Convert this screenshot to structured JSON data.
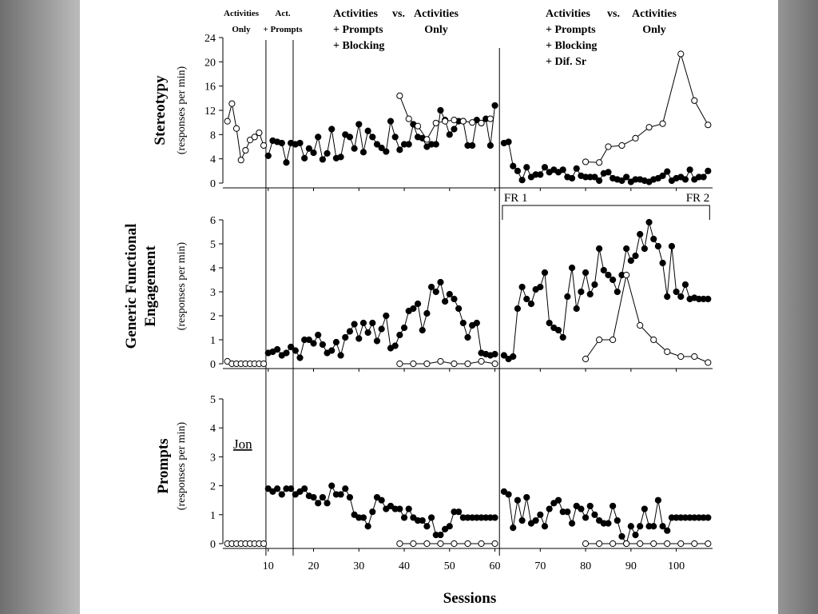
{
  "colors": {
    "background": "#bdbdbd",
    "slide": "#ffffff",
    "ink": "#000000"
  },
  "phase_labels": [
    {
      "lines": [
        "Activities",
        "Only"
      ],
      "small": true
    },
    {
      "lines": [
        "Act.",
        "+ Prompts"
      ],
      "small": true
    },
    {
      "lines": [
        "Activities",
        "+ Prompts",
        "+ Blocking"
      ]
    },
    {
      "lines": [
        "vs."
      ]
    },
    {
      "lines": [
        "Activities",
        "Only"
      ]
    },
    {
      "lines": [
        "Activities",
        "+ Prompts",
        "+ Blocking",
        "+ Dif. Sr"
      ]
    },
    {
      "lines": [
        "vs."
      ]
    },
    {
      "lines": [
        "Activities",
        "Only"
      ]
    }
  ],
  "participant": "Jon",
  "fr_labels": [
    "FR 1",
    "FR 2"
  ],
  "x_axis": {
    "label": "Sessions",
    "ticks": [
      10,
      20,
      30,
      40,
      50,
      60,
      70,
      80,
      90,
      100
    ],
    "range": [
      0,
      108
    ]
  },
  "phase_change_sessions": [
    9.5,
    15.5,
    61
  ],
  "chart_data": [
    {
      "type": "line",
      "title": "Stereotypy",
      "ylabel": "Stereotypy",
      "ysublabel": "(responses per min)",
      "ylim": [
        0,
        24
      ],
      "yticks": [
        0,
        4,
        8,
        12,
        16,
        20,
        24
      ],
      "series": [
        {
          "name": "filled",
          "marker": "filled",
          "segments": [
            {
              "x": [
                10,
                11,
                12,
                13,
                14,
                15,
                16,
                17,
                18,
                19,
                20,
                21,
                22,
                23,
                24,
                25,
                26,
                27,
                28,
                29,
                30,
                31,
                32,
                33,
                34,
                35,
                36,
                37,
                38,
                39,
                40,
                41,
                42,
                43,
                44,
                45,
                46,
                47,
                48,
                49,
                50,
                51,
                52,
                53,
                54,
                55,
                56,
                57,
                58,
                59,
                60
              ],
              "y": [
                4.5,
                7.0,
                6.8,
                6.6,
                3.4,
                6.6,
                6.4,
                6.6,
                4.1,
                5.7,
                5.0,
                7.6,
                3.9,
                4.9,
                8.9,
                4.1,
                4.3,
                8.0,
                7.6,
                5.7,
                9.7,
                5.1,
                8.6,
                7.6,
                6.4,
                5.8,
                5.2,
                10.2,
                7.6,
                5.5,
                6.4,
                6.4,
                9.7,
                7.6,
                7.4,
                6.0,
                6.4,
                6.4,
                12.0,
                10.4,
                8.0,
                8.9,
                10.2,
                10.2,
                6.2,
                6.2,
                10.4,
                9.9,
                10.6,
                6.2,
                12.8
              ]
            },
            {
              "x": [
                62,
                63,
                64,
                65,
                66,
                67,
                68,
                69,
                70,
                71,
                72,
                73,
                74,
                75,
                76,
                77,
                78,
                79,
                80,
                81,
                82,
                83,
                84,
                85,
                86,
                87,
                88,
                89,
                90,
                91,
                92,
                93,
                94,
                95,
                96,
                97,
                98,
                99,
                100,
                101,
                102,
                103,
                104,
                105,
                106,
                107
              ],
              "y": [
                6.6,
                6.8,
                2.8,
                2.0,
                0.5,
                2.6,
                1.0,
                1.4,
                1.4,
                2.6,
                1.8,
                2.2,
                1.8,
                2.2,
                1.0,
                0.8,
                2.4,
                1.2,
                1.0,
                1.0,
                1.0,
                0.4,
                1.6,
                1.8,
                0.8,
                0.6,
                0.4,
                1.0,
                0.2,
                0.6,
                0.6,
                0.4,
                0.2,
                0.6,
                0.8,
                1.2,
                1.9,
                0.4,
                0.8,
                1.0,
                0.6,
                2.2,
                0.6,
                1.0,
                1.0,
                2.0
              ]
            }
          ]
        },
        {
          "name": "open",
          "marker": "open",
          "segments": [
            {
              "x": [
                1,
                2,
                3,
                4,
                5,
                6,
                7,
                8,
                9
              ],
              "y": [
                10.2,
                13.1,
                9.0,
                3.8,
                5.4,
                7.1,
                7.6,
                8.3,
                6.2
              ]
            },
            {
              "x": [
                39,
                41,
                43,
                45,
                47,
                49,
                51,
                53,
                55,
                57,
                59
              ],
              "y": [
                14.4,
                10.6,
                9.4,
                7.2,
                9.9,
                10.2,
                10.4,
                10.2,
                10.0,
                9.9,
                10.6
              ]
            },
            {
              "x": [
                80,
                83,
                85,
                88,
                91,
                94,
                97,
                101,
                104,
                107
              ],
              "y": [
                3.5,
                3.4,
                6.0,
                6.2,
                7.4,
                9.2,
                9.8,
                21.3,
                13.6,
                9.6
              ]
            }
          ]
        }
      ]
    },
    {
      "type": "line",
      "title": "Generic Functional Engagement",
      "ylabel": "Generic Functional Engagement",
      "ysublabel": "(responses per min)",
      "ylim": [
        0,
        6
      ],
      "yticks": [
        0,
        1,
        2,
        3,
        4,
        5,
        6
      ],
      "series": [
        {
          "name": "filled",
          "marker": "filled",
          "segments": [
            {
              "x": [
                10,
                11,
                12,
                13,
                14,
                15,
                16,
                17,
                18,
                19,
                20,
                21,
                22,
                23,
                24,
                25,
                26,
                27,
                28,
                29,
                30,
                31,
                32,
                33,
                34,
                35,
                36,
                37,
                38,
                39,
                40,
                41,
                42,
                43,
                44,
                45,
                46,
                47,
                48,
                49,
                50,
                51,
                52,
                53,
                54,
                55,
                56,
                57,
                58,
                59,
                60
              ],
              "y": [
                0.45,
                0.5,
                0.6,
                0.35,
                0.45,
                0.7,
                0.55,
                0.25,
                1.0,
                1.0,
                0.85,
                1.2,
                0.8,
                0.45,
                0.55,
                0.9,
                0.35,
                1.1,
                1.35,
                1.65,
                1.05,
                1.7,
                1.3,
                1.7,
                0.95,
                1.45,
                2.0,
                0.65,
                0.75,
                1.2,
                1.5,
                2.2,
                2.3,
                2.5,
                1.4,
                2.1,
                3.2,
                3.0,
                3.4,
                2.6,
                2.9,
                2.7,
                2.3,
                1.7,
                1.1,
                1.6,
                1.7,
                0.45,
                0.4,
                0.35,
                0.4
              ]
            },
            {
              "x": [
                62,
                63,
                64,
                65,
                66,
                67,
                68,
                69,
                70,
                71,
                72,
                73,
                74,
                75,
                76,
                77,
                78,
                79,
                80,
                81,
                82,
                83,
                84,
                85,
                86,
                87,
                88,
                89,
                90,
                91,
                92,
                93,
                94,
                95,
                96,
                97,
                98,
                99,
                100,
                101,
                102,
                103,
                104,
                105,
                106,
                107
              ],
              "y": [
                0.35,
                0.2,
                0.3,
                2.3,
                3.2,
                2.7,
                2.5,
                3.1,
                3.2,
                3.8,
                1.7,
                1.5,
                1.4,
                1.1,
                2.8,
                4.0,
                2.3,
                3.0,
                3.8,
                2.9,
                3.3,
                4.8,
                3.9,
                3.7,
                3.5,
                3.0,
                3.7,
                4.8,
                4.3,
                4.5,
                5.4,
                4.8,
                5.9,
                5.2,
                4.9,
                4.2,
                2.8,
                4.9,
                3.0,
                2.8,
                3.3,
                2.7,
                2.75,
                2.7,
                2.7,
                2.7
              ]
            }
          ]
        },
        {
          "name": "open",
          "marker": "open",
          "segments": [
            {
              "x": [
                1,
                2,
                3,
                4,
                5,
                6,
                7,
                8,
                9
              ],
              "y": [
                0.1,
                0.0,
                0.0,
                0.0,
                0.0,
                0.0,
                0.0,
                0.0,
                0.0
              ]
            },
            {
              "x": [
                39,
                42,
                45,
                48,
                51,
                54,
                57,
                60
              ],
              "y": [
                0.0,
                0.0,
                0.0,
                0.1,
                0.0,
                0.0,
                0.1,
                0.0
              ]
            },
            {
              "x": [
                80,
                83,
                86,
                89,
                92,
                95,
                98,
                101,
                104,
                107
              ],
              "y": [
                0.2,
                1.0,
                1.0,
                3.7,
                1.6,
                1.0,
                0.5,
                0.3,
                0.3,
                0.05
              ]
            }
          ]
        }
      ]
    },
    {
      "type": "line",
      "title": "Prompts",
      "ylabel": "Prompts",
      "ysublabel": "(responses per min)",
      "ylim": [
        0,
        5
      ],
      "yticks": [
        0,
        1,
        2,
        3,
        4,
        5
      ],
      "series": [
        {
          "name": "filled",
          "marker": "filled",
          "segments": [
            {
              "x": [
                10,
                11,
                12,
                13,
                14,
                15,
                16,
                17,
                18,
                19,
                20,
                21,
                22,
                23,
                24,
                25,
                26,
                27,
                28,
                29,
                30,
                31,
                32,
                33,
                34,
                35,
                36,
                37,
                38,
                39,
                40,
                41,
                42,
                43,
                44,
                45,
                46,
                47,
                48,
                49,
                50,
                51,
                52,
                53,
                54,
                55,
                56,
                57,
                58,
                59,
                60
              ],
              "y": [
                1.9,
                1.8,
                1.9,
                1.7,
                1.9,
                1.9,
                1.7,
                1.8,
                1.9,
                1.65,
                1.6,
                1.4,
                1.6,
                1.4,
                2.0,
                1.7,
                1.7,
                1.9,
                1.6,
                1.0,
                0.9,
                0.9,
                0.6,
                1.1,
                1.6,
                1.5,
                1.2,
                1.3,
                1.2,
                1.2,
                0.9,
                1.2,
                0.9,
                0.8,
                0.8,
                0.6,
                0.9,
                0.3,
                0.3,
                0.5,
                0.6,
                1.1,
                1.1,
                0.9,
                0.9,
                0.9,
                0.9,
                0.9,
                0.9,
                0.9,
                0.9
              ]
            },
            {
              "x": [
                62,
                63,
                64,
                65,
                66,
                67,
                68,
                69,
                70,
                71,
                72,
                73,
                74,
                75,
                76,
                77,
                78,
                79,
                80,
                81,
                82,
                83,
                84,
                85,
                86,
                87,
                88,
                89,
                90,
                91,
                92,
                93,
                94,
                95,
                96,
                97,
                98,
                99,
                100,
                101,
                102,
                103,
                104,
                105,
                106,
                107
              ],
              "y": [
                1.8,
                1.7,
                0.55,
                1.5,
                0.8,
                1.6,
                0.7,
                0.8,
                1.0,
                0.6,
                1.2,
                1.4,
                1.5,
                1.1,
                1.1,
                0.7,
                1.3,
                1.2,
                0.9,
                1.3,
                1.0,
                0.8,
                0.7,
                0.7,
                1.3,
                0.8,
                0.25,
                0.0,
                0.6,
                0.3,
                0.6,
                1.2,
                0.6,
                0.6,
                1.5,
                0.6,
                0.45,
                0.9,
                0.9,
                0.9,
                0.9,
                0.9,
                0.9,
                0.9,
                0.9,
                0.9
              ]
            }
          ]
        },
        {
          "name": "open",
          "marker": "open",
          "segments": [
            {
              "x": [
                1,
                2,
                3,
                4,
                5,
                6,
                7,
                8,
                9
              ],
              "y": [
                0,
                0,
                0,
                0,
                0,
                0,
                0,
                0,
                0
              ]
            },
            {
              "x": [
                39,
                42,
                45,
                48,
                51,
                54,
                57,
                60
              ],
              "y": [
                0,
                0,
                0,
                0,
                0,
                0,
                0,
                0
              ]
            },
            {
              "x": [
                80,
                83,
                86,
                89,
                92,
                95,
                98,
                101,
                104,
                107
              ],
              "y": [
                0,
                0,
                0,
                0,
                0,
                0,
                0,
                0,
                0,
                0
              ]
            }
          ]
        }
      ]
    }
  ]
}
